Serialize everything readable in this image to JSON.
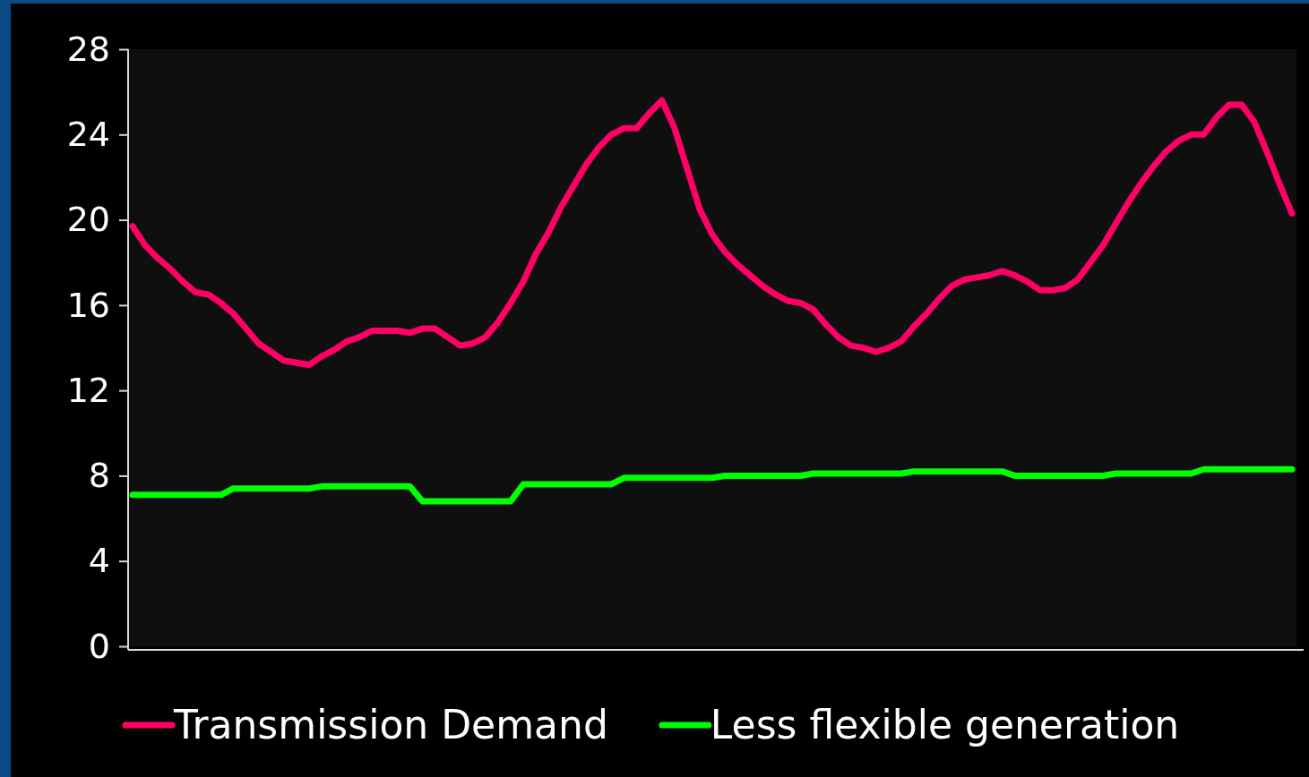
{
  "chart_data": {
    "type": "line",
    "categories": [
      null,
      null,
      null,
      null,
      null,
      null,
      null,
      null,
      null,
      null,
      null,
      null,
      null,
      null,
      null,
      null,
      null,
      null,
      null,
      null,
      null,
      null,
      null,
      null,
      null,
      null,
      null,
      null,
      null,
      null,
      null,
      null,
      null,
      null,
      null,
      null,
      null,
      null,
      null,
      null,
      null,
      null,
      null,
      null,
      null,
      null,
      null,
      null,
      null,
      null,
      null,
      null,
      null,
      null,
      null,
      null,
      null,
      null,
      null,
      null,
      null,
      null,
      null,
      null,
      null,
      null,
      null,
      null,
      null,
      null,
      null,
      null,
      null,
      null,
      null,
      null,
      null,
      null,
      null,
      null,
      null,
      null,
      null,
      null,
      null,
      null,
      null,
      null,
      null,
      null,
      null,
      null,
      null
    ],
    "series": [
      {
        "name": "Transmission Demand",
        "color": "#ff0066",
        "values": [
          19.7,
          18.8,
          18.2,
          17.7,
          17.1,
          16.6,
          16.5,
          16.1,
          15.6,
          14.9,
          14.2,
          13.8,
          13.4,
          13.3,
          13.2,
          13.6,
          13.9,
          14.3,
          14.5,
          14.8,
          14.8,
          14.8,
          14.7,
          14.9,
          14.9,
          14.5,
          14.1,
          14.2,
          14.5,
          15.2,
          16.1,
          17.1,
          18.4,
          19.4,
          20.6,
          21.6,
          22.6,
          23.4,
          24.0,
          24.3,
          24.3,
          25.0,
          25.6,
          24.3,
          22.4,
          20.5,
          19.3,
          18.5,
          17.9,
          17.4,
          16.9,
          16.5,
          16.2,
          16.1,
          15.8,
          15.1,
          14.5,
          14.1,
          14.0,
          13.8,
          14.0,
          14.3,
          15.0,
          15.6,
          16.3,
          16.9,
          17.2,
          17.3,
          17.4,
          17.6,
          17.4,
          17.1,
          16.7,
          16.7,
          16.8,
          17.2,
          18.0,
          18.8,
          19.8,
          20.8,
          21.7,
          22.5,
          23.2,
          23.7,
          24.0,
          24.0,
          24.8,
          25.4,
          25.4,
          24.6,
          23.2,
          21.7,
          20.3
        ]
      },
      {
        "name": "Less flexible generation",
        "color": "#00ff00",
        "values": [
          7.1,
          7.1,
          7.1,
          7.1,
          7.1,
          7.1,
          7.1,
          7.1,
          7.4,
          7.4,
          7.4,
          7.4,
          7.4,
          7.4,
          7.4,
          7.5,
          7.5,
          7.5,
          7.5,
          7.5,
          7.5,
          7.5,
          7.5,
          6.8,
          6.8,
          6.8,
          6.8,
          6.8,
          6.8,
          6.8,
          6.8,
          7.6,
          7.6,
          7.6,
          7.6,
          7.6,
          7.6,
          7.6,
          7.6,
          7.9,
          7.9,
          7.9,
          7.9,
          7.9,
          7.9,
          7.9,
          7.9,
          8.0,
          8.0,
          8.0,
          8.0,
          8.0,
          8.0,
          8.0,
          8.1,
          8.1,
          8.1,
          8.1,
          8.1,
          8.1,
          8.1,
          8.1,
          8.2,
          8.2,
          8.2,
          8.2,
          8.2,
          8.2,
          8.2,
          8.2,
          8.0,
          8.0,
          8.0,
          8.0,
          8.0,
          8.0,
          8.0,
          8.0,
          8.1,
          8.1,
          8.1,
          8.1,
          8.1,
          8.1,
          8.1,
          8.3,
          8.3,
          8.3,
          8.3,
          8.3,
          8.3,
          8.3,
          8.3
        ]
      }
    ],
    "ylim": [
      0,
      28
    ],
    "yticks": [
      0,
      4,
      8,
      12,
      16,
      20,
      24,
      28
    ],
    "grid": false,
    "legend": "bottom",
    "marker": "none",
    "line_style": "solid"
  }
}
